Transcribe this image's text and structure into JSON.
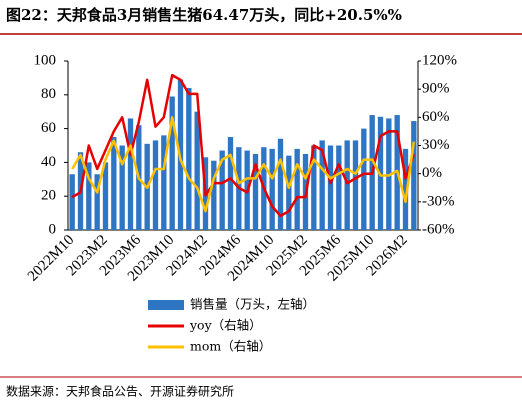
{
  "chart_data": {
    "type": "bar",
    "title": "图22：天邦食品3月销售生猪64.47万头，同比+20.5%%",
    "source": "数据来源：天邦食品公告、开源证券研究所",
    "categories": [
      "2022M10",
      null,
      null,
      null,
      "2023M2",
      null,
      null,
      null,
      "2023M6",
      null,
      null,
      null,
      "2023M10",
      null,
      null,
      null,
      "2024M2",
      null,
      null,
      null,
      "2024M6",
      null,
      null,
      null,
      "2024M10",
      null,
      null,
      null,
      "2025M2",
      null,
      null,
      null,
      "2025M6",
      null,
      null,
      null,
      "2025M10",
      null,
      null,
      null,
      "2026M2",
      null
    ],
    "series": [
      {
        "name": "销售量（万头，左轴）",
        "type": "bar",
        "color": "#2e75c3",
        "values": [
          33,
          46,
          40,
          33,
          40,
          55,
          50,
          66,
          62,
          51,
          53,
          56,
          79,
          89,
          84,
          70,
          43,
          41,
          47,
          55,
          49,
          47,
          45,
          49,
          48,
          54,
          44,
          48,
          45,
          50,
          53,
          50,
          50,
          53,
          53,
          60,
          68,
          67,
          66,
          68,
          48,
          64.47
        ]
      },
      {
        "name": "yoy（右轴）",
        "type": "line",
        "axis": "y2",
        "color": "#e60000",
        "values": [
          -25,
          -20,
          30,
          5,
          25,
          45,
          60,
          20,
          55,
          100,
          50,
          60,
          105,
          100,
          85,
          85,
          -23,
          -10,
          -10,
          -5,
          -15,
          -20,
          10,
          -15,
          -35,
          -45,
          -40,
          -25,
          -25,
          30,
          25,
          -10,
          10,
          -10,
          -5,
          0,
          0,
          40,
          45,
          45,
          -5,
          20.5
        ]
      },
      {
        "name": "mom（右轴）",
        "type": "line",
        "axis": "y2",
        "color": "#ffc000",
        "values": [
          5,
          20,
          -5,
          -20,
          15,
          35,
          10,
          30,
          -5,
          -15,
          5,
          5,
          60,
          15,
          -5,
          -15,
          -40,
          -5,
          15,
          20,
          -10,
          -5,
          -5,
          10,
          -5,
          15,
          -15,
          10,
          -5,
          15,
          5,
          -5,
          0,
          5,
          0,
          15,
          15,
          -2,
          -2,
          3,
          -30,
          34
        ]
      }
    ],
    "ylim": [
      0,
      100
    ],
    "yticks": [
      0,
      20,
      40,
      60,
      80,
      100
    ],
    "y2lim": [
      -60,
      120
    ],
    "y2ticks": [
      {
        "value": -60,
        "label": "-60%"
      },
      {
        "value": -30,
        "label": "-30%"
      },
      {
        "value": 0,
        "label": "0%"
      },
      {
        "value": 30,
        "label": "30%"
      },
      {
        "value": 60,
        "label": "60%"
      },
      {
        "value": 90,
        "label": "90%"
      },
      {
        "value": 120,
        "label": "120%"
      }
    ]
  }
}
